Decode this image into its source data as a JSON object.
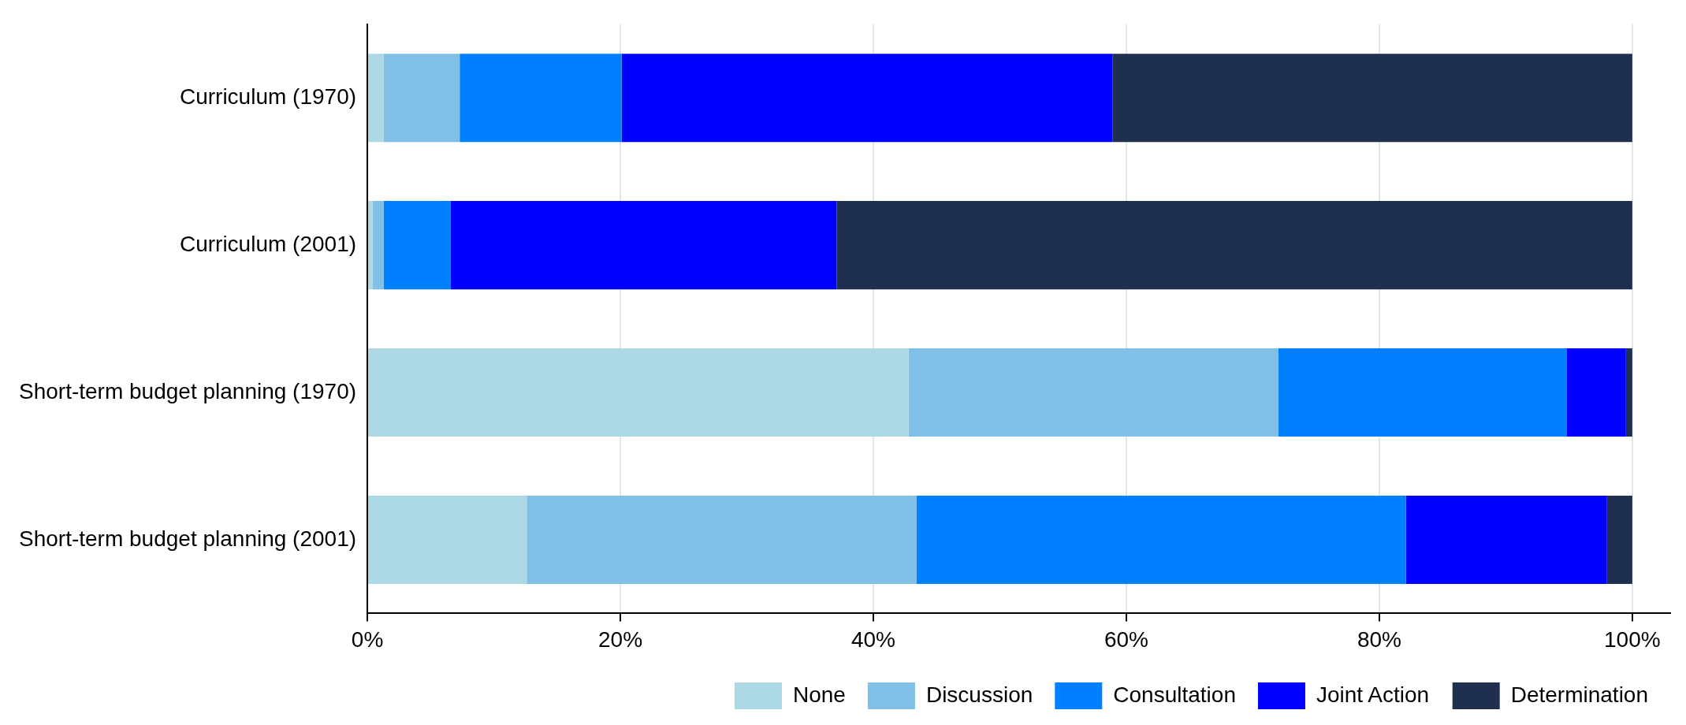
{
  "chart_data": {
    "type": "bar",
    "orientation": "horizontal",
    "stacked": true,
    "categories": [
      "Curriculum (1970)",
      "Curriculum (2001)",
      "Short-term budget planning (1970)",
      "Short-term budget planning (2001)"
    ],
    "series": [
      {
        "name": "None",
        "color": "#add8e6",
        "values": [
          1.3,
          0.4,
          42.8,
          12.6
        ]
      },
      {
        "name": "Discussion",
        "color": "#80bfe6",
        "values": [
          6.0,
          0.9,
          29.2,
          30.8
        ]
      },
      {
        "name": "Consultation",
        "color": "#0080ff",
        "values": [
          12.8,
          5.3,
          22.8,
          38.7
        ]
      },
      {
        "name": "Joint Action",
        "color": "#0000ff",
        "values": [
          38.8,
          30.5,
          4.7,
          15.9
        ]
      },
      {
        "name": "Determination",
        "color": "#1f2f50",
        "values": [
          41.1,
          62.9,
          0.5,
          2.0
        ]
      }
    ],
    "xlim": [
      0,
      103
    ],
    "xticks": [
      {
        "value": 0,
        "label": "0%"
      },
      {
        "value": 20,
        "label": "20%"
      },
      {
        "value": 40,
        "label": "40%"
      },
      {
        "value": 60,
        "label": "60%"
      },
      {
        "value": 80,
        "label": "80%"
      },
      {
        "value": 100,
        "label": "100%"
      }
    ],
    "grid": "x",
    "legend": "bottom"
  }
}
